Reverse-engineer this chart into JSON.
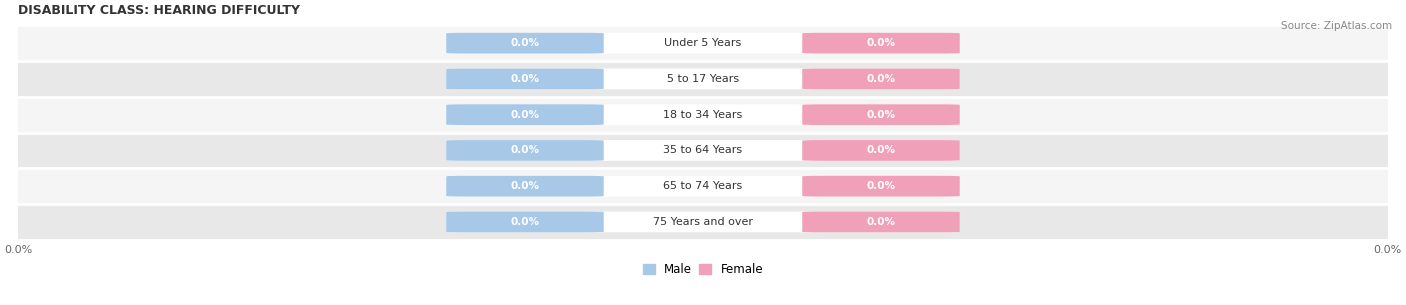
{
  "title": "DISABILITY CLASS: HEARING DIFFICULTY",
  "source": "Source: ZipAtlas.com",
  "categories": [
    "Under 5 Years",
    "5 to 17 Years",
    "18 to 34 Years",
    "35 to 64 Years",
    "65 to 74 Years",
    "75 Years and over"
  ],
  "male_values": [
    0.0,
    0.0,
    0.0,
    0.0,
    0.0,
    0.0
  ],
  "female_values": [
    0.0,
    0.0,
    0.0,
    0.0,
    0.0,
    0.0
  ],
  "male_color": "#a8c8e8",
  "female_color": "#f0a0b8",
  "row_bg_color_light": "#f5f5f5",
  "row_bg_color_dark": "#e8e8e8",
  "title_color": "#333333",
  "source_color": "#888888",
  "label_color": "#333333",
  "figsize": [
    14.06,
    3.05
  ],
  "dpi": 100
}
